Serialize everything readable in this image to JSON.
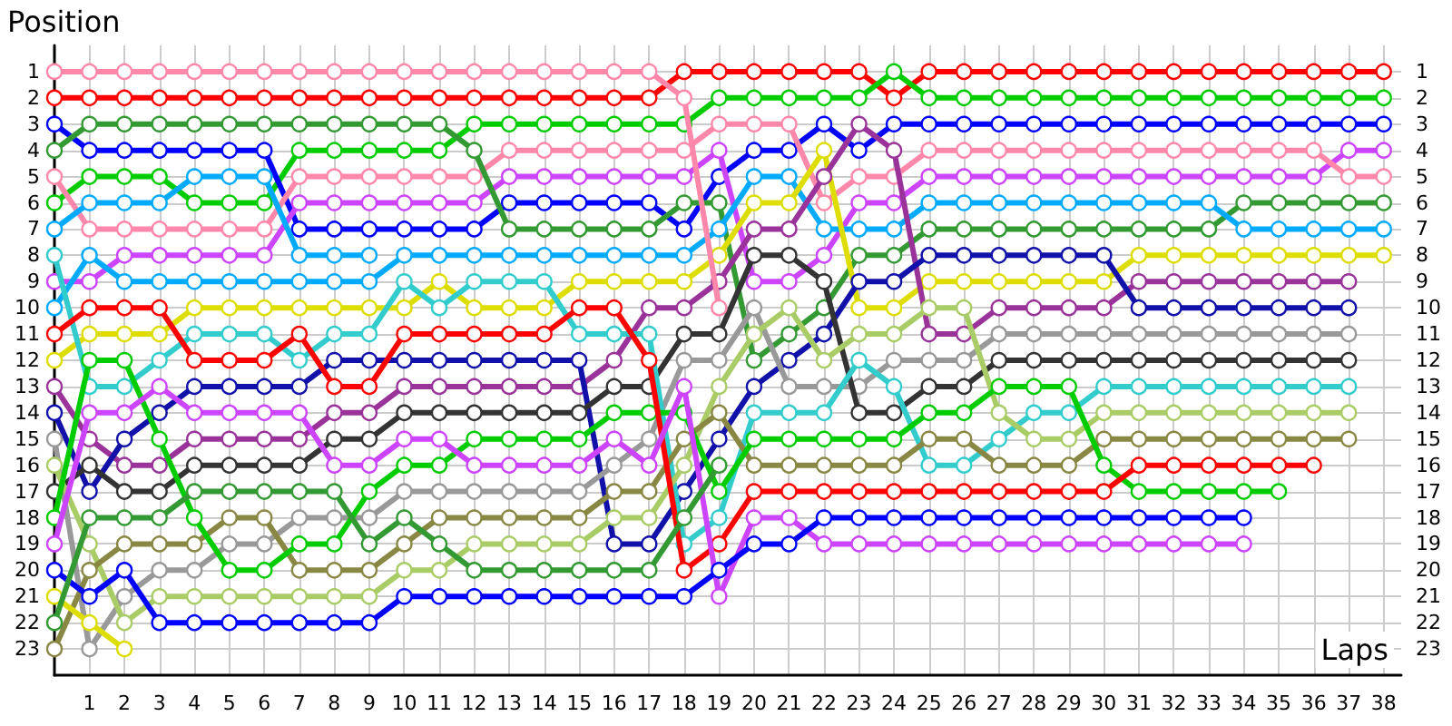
{
  "chart_data": {
    "type": "line",
    "xlabel": "Laps",
    "ylabel": "Position",
    "marker": "circle",
    "line_style": "solid",
    "grid": true,
    "x": [
      0,
      1,
      2,
      3,
      4,
      5,
      6,
      7,
      8,
      9,
      10,
      11,
      12,
      13,
      14,
      15,
      16,
      17,
      18,
      19,
      20,
      21,
      22,
      23,
      24,
      25,
      26,
      27,
      28,
      29,
      30,
      31,
      32,
      33,
      34,
      35,
      36,
      37,
      38
    ],
    "xlim": [
      0,
      38.5
    ],
    "xticks": [
      1,
      2,
      3,
      4,
      5,
      6,
      7,
      8,
      9,
      10,
      11,
      12,
      13,
      14,
      15,
      16,
      17,
      18,
      19,
      20,
      21,
      22,
      23,
      24,
      25,
      26,
      27,
      28,
      29,
      30,
      31,
      32,
      33,
      34,
      35,
      36,
      37,
      38
    ],
    "ylim": [
      24,
      0
    ],
    "yticks": [
      1,
      2,
      3,
      4,
      5,
      6,
      7,
      8,
      9,
      10,
      11,
      12,
      13,
      14,
      15,
      16,
      17,
      18,
      19,
      20,
      21,
      22,
      23
    ],
    "y2lim": [
      24,
      0
    ],
    "y2ticks": [
      1,
      2,
      3,
      4,
      5,
      6,
      7,
      8,
      9,
      10,
      11,
      12,
      13,
      14,
      15,
      16,
      17,
      18,
      19,
      20,
      21,
      22,
      23
    ],
    "series": [
      {
        "color": "#ff0000",
        "values": [
          2,
          2,
          2,
          2,
          2,
          2,
          2,
          2,
          2,
          2,
          2,
          2,
          2,
          2,
          2,
          2,
          2,
          2,
          1,
          1,
          1,
          1,
          1,
          1,
          2,
          1,
          1,
          1,
          1,
          1,
          1,
          1,
          1,
          1,
          1,
          1,
          1,
          1,
          1
        ]
      },
      {
        "color": "#00cc00",
        "values": [
          6,
          5,
          5,
          5,
          6,
          6,
          6,
          4,
          4,
          4,
          4,
          4,
          3,
          3,
          3,
          3,
          3,
          3,
          3,
          2,
          2,
          2,
          2,
          2,
          1,
          2,
          2,
          2,
          2,
          2,
          2,
          2,
          2,
          2,
          2,
          2,
          2,
          2,
          2
        ]
      },
      {
        "color": "#0000ff",
        "values": [
          3,
          4,
          4,
          4,
          4,
          4,
          4,
          7,
          7,
          7,
          7,
          7,
          7,
          6,
          6,
          6,
          6,
          6,
          7,
          5,
          4,
          4,
          3,
          4,
          3,
          3,
          3,
          3,
          3,
          3,
          3,
          3,
          3,
          3,
          3,
          3,
          3,
          3,
          3
        ]
      },
      {
        "color": "#cc44ff",
        "values": [
          9,
          9,
          8,
          8,
          8,
          8,
          8,
          6,
          6,
          6,
          6,
          6,
          6,
          5,
          5,
          5,
          5,
          5,
          5,
          4,
          9,
          9,
          8,
          6,
          6,
          5,
          5,
          5,
          5,
          5,
          5,
          5,
          5,
          5,
          5,
          5,
          5,
          4,
          4
        ]
      },
      {
        "color": "#ff88aa",
        "values": [
          5,
          7,
          7,
          7,
          7,
          7,
          7,
          5,
          5,
          5,
          5,
          5,
          5,
          4,
          4,
          4,
          4,
          4,
          4,
          3,
          3,
          3,
          6,
          5,
          5,
          4,
          4,
          4,
          4,
          4,
          4,
          4,
          4,
          4,
          4,
          4,
          4,
          5,
          5
        ]
      },
      {
        "color": "#339933",
        "values": [
          4,
          3,
          3,
          3,
          3,
          3,
          3,
          3,
          3,
          3,
          3,
          3,
          4,
          7,
          7,
          7,
          7,
          7,
          6,
          6,
          12,
          11,
          10,
          8,
          8,
          7,
          7,
          7,
          7,
          7,
          7,
          7,
          7,
          7,
          6,
          6,
          6,
          6,
          6
        ]
      },
      {
        "color": "#00aaff",
        "values": [
          10,
          8,
          9,
          9,
          9,
          9,
          9,
          9,
          9,
          9,
          8,
          8,
          8,
          8,
          8,
          8,
          8,
          8,
          8,
          7,
          5,
          5,
          7,
          7,
          7,
          6,
          6,
          6,
          6,
          6,
          6,
          6,
          6,
          6,
          7,
          7,
          7,
          7,
          7
        ]
      },
      {
        "color": "#dddd00",
        "values": [
          12,
          11,
          11,
          11,
          10,
          10,
          10,
          10,
          10,
          10,
          10,
          9,
          10,
          10,
          10,
          9,
          9,
          9,
          9,
          8,
          6,
          6,
          4,
          10,
          10,
          9,
          9,
          9,
          9,
          9,
          9,
          8,
          8,
          8,
          8,
          8,
          8,
          8,
          8
        ]
      },
      {
        "color": "#993399",
        "values": [
          13,
          15,
          16,
          16,
          15,
          15,
          15,
          15,
          14,
          14,
          13,
          13,
          13,
          13,
          13,
          13,
          12,
          10,
          10,
          9,
          7,
          7,
          5,
          3,
          4,
          11,
          11,
          10,
          10,
          10,
          10,
          9,
          9,
          9,
          9,
          9,
          9,
          9,
          null
        ]
      },
      {
        "color": "#1111aa",
        "values": [
          14,
          17,
          15,
          14,
          13,
          13,
          13,
          13,
          12,
          12,
          12,
          12,
          12,
          12,
          12,
          12,
          19,
          19,
          17,
          15,
          13,
          12,
          11,
          9,
          9,
          8,
          8,
          8,
          8,
          8,
          8,
          10,
          10,
          10,
          10,
          10,
          10,
          10,
          null
        ]
      },
      {
        "color": "#999999",
        "values": [
          15,
          23,
          21,
          20,
          20,
          19,
          19,
          18,
          18,
          18,
          17,
          17,
          17,
          17,
          17,
          17,
          16,
          15,
          12,
          12,
          10,
          13,
          13,
          13,
          12,
          12,
          12,
          11,
          11,
          11,
          11,
          11,
          11,
          11,
          11,
          11,
          11,
          11,
          null
        ]
      },
      {
        "color": "#333333",
        "values": [
          17,
          16,
          17,
          17,
          16,
          16,
          16,
          16,
          15,
          15,
          14,
          14,
          14,
          14,
          14,
          14,
          13,
          13,
          11,
          11,
          8,
          8,
          9,
          14,
          14,
          13,
          13,
          12,
          12,
          12,
          12,
          12,
          12,
          12,
          12,
          12,
          12,
          12,
          null
        ]
      },
      {
        "color": "#33cccc",
        "values": [
          8,
          13,
          13,
          12,
          11,
          11,
          11,
          12,
          11,
          11,
          9,
          10,
          9,
          9,
          9,
          11,
          11,
          11,
          19,
          18,
          14,
          14,
          14,
          12,
          13,
          16,
          16,
          15,
          14,
          14,
          13,
          13,
          13,
          13,
          13,
          13,
          13,
          13,
          null
        ]
      },
      {
        "color": "#aacc66",
        "values": [
          16,
          19,
          22,
          21,
          21,
          21,
          21,
          21,
          21,
          21,
          20,
          20,
          19,
          19,
          19,
          19,
          18,
          18,
          16,
          13,
          11,
          10,
          12,
          11,
          11,
          10,
          10,
          14,
          15,
          15,
          14,
          14,
          14,
          14,
          14,
          14,
          14,
          14,
          null
        ]
      },
      {
        "color": "#888844",
        "values": [
          23,
          20,
          19,
          19,
          19,
          18,
          18,
          20,
          20,
          20,
          19,
          18,
          18,
          18,
          18,
          18,
          17,
          17,
          15,
          14,
          16,
          16,
          16,
          16,
          16,
          15,
          15,
          16,
          16,
          16,
          15,
          15,
          15,
          15,
          15,
          15,
          15,
          15,
          null
        ]
      },
      {
        "color": "#00cc00",
        "values": [
          18,
          12,
          12,
          15,
          18,
          20,
          20,
          19,
          19,
          17,
          16,
          16,
          15,
          15,
          15,
          15,
          14,
          14,
          14,
          17,
          15,
          15,
          15,
          15,
          15,
          14,
          14,
          13,
          13,
          13,
          16,
          17,
          17,
          17,
          17,
          17,
          null,
          null,
          null
        ]
      },
      {
        "color": "#ff0000",
        "values": [
          11,
          10,
          10,
          10,
          12,
          12,
          12,
          11,
          13,
          13,
          11,
          11,
          11,
          11,
          11,
          10,
          10,
          12,
          20,
          19,
          17,
          17,
          17,
          17,
          17,
          17,
          17,
          17,
          17,
          17,
          17,
          16,
          16,
          16,
          16,
          16,
          16,
          null,
          null
        ]
      },
      {
        "color": "#cc44ff",
        "values": [
          19,
          14,
          14,
          13,
          14,
          14,
          14,
          14,
          16,
          16,
          15,
          15,
          16,
          16,
          16,
          16,
          15,
          16,
          13,
          21,
          18,
          18,
          19,
          19,
          19,
          19,
          19,
          19,
          19,
          19,
          19,
          19,
          19,
          19,
          19,
          null,
          null,
          null,
          null
        ]
      },
      {
        "color": "#0000ff",
        "values": [
          20,
          21,
          20,
          22,
          22,
          22,
          22,
          22,
          22,
          22,
          21,
          21,
          21,
          21,
          21,
          21,
          21,
          21,
          21,
          20,
          19,
          19,
          18,
          18,
          18,
          18,
          18,
          18,
          18,
          18,
          18,
          18,
          18,
          18,
          18,
          null,
          null,
          null,
          null
        ]
      },
      {
        "color": "#ff88aa",
        "values": [
          1,
          1,
          1,
          1,
          1,
          1,
          1,
          1,
          1,
          1,
          1,
          1,
          1,
          1,
          1,
          1,
          1,
          1,
          2,
          10,
          null,
          null,
          null,
          null,
          null,
          null,
          null,
          null,
          null,
          null,
          null,
          null,
          null,
          null,
          null,
          null,
          null,
          null,
          null
        ]
      },
      {
        "color": "#00aaff",
        "values": [
          7,
          6,
          6,
          6,
          5,
          5,
          5,
          8,
          8,
          8,
          null,
          null,
          null,
          null,
          null,
          null,
          null,
          null,
          null,
          null,
          null,
          null,
          null,
          null,
          null,
          null,
          null,
          null,
          null,
          null,
          null,
          null,
          null,
          null,
          null,
          null,
          null,
          null,
          null
        ]
      },
      {
        "color": "#dddd00",
        "values": [
          21,
          22,
          23,
          null,
          null,
          null,
          null,
          null,
          null,
          null,
          null,
          null,
          null,
          null,
          null,
          null,
          null,
          null,
          null,
          null,
          null,
          null,
          null,
          null,
          null,
          null,
          null,
          null,
          null,
          null,
          null,
          null,
          null,
          null,
          null,
          null,
          null,
          null,
          null
        ]
      },
      {
        "color": "#339933",
        "values": [
          22,
          18,
          18,
          18,
          17,
          17,
          17,
          17,
          17,
          19,
          18,
          19,
          20,
          20,
          20,
          20,
          20,
          20,
          18,
          16,
          null,
          null,
          null,
          null,
          null,
          null,
          null,
          null,
          null,
          null,
          null,
          null,
          null,
          null,
          null,
          null,
          null,
          null,
          null
        ]
      }
    ]
  }
}
